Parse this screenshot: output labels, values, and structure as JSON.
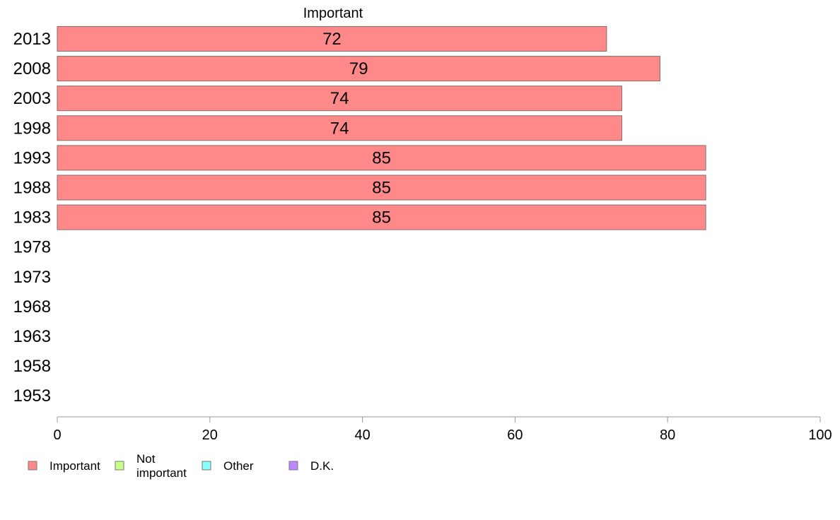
{
  "chart_data": {
    "type": "bar",
    "orientation": "horizontal",
    "title": "Important",
    "categories": [
      "2013",
      "2008",
      "2003",
      "1998",
      "1993",
      "1988",
      "1983",
      "1978",
      "1973",
      "1968",
      "1963",
      "1958",
      "1953"
    ],
    "series": [
      {
        "name": "Important",
        "color": "#ff8888",
        "values": [
          72,
          79,
          74,
          74,
          85,
          85,
          85,
          null,
          null,
          null,
          null,
          null,
          null
        ]
      }
    ],
    "data_labels": [
      "72",
      "79",
      "74",
      "74",
      "85",
      "85",
      "85"
    ],
    "xlim": [
      0,
      100
    ],
    "xticks": [
      0,
      20,
      40,
      60,
      80,
      100
    ],
    "grid": false,
    "legend": {
      "placement": "bottom-left",
      "items": [
        {
          "label": "Important",
          "color": "#ff8888"
        },
        {
          "label": "Not important",
          "color": "#c6ff8a"
        },
        {
          "label": "Other",
          "color": "#88ffff"
        },
        {
          "label": "D.K.",
          "color": "#bb88ff"
        }
      ]
    }
  }
}
